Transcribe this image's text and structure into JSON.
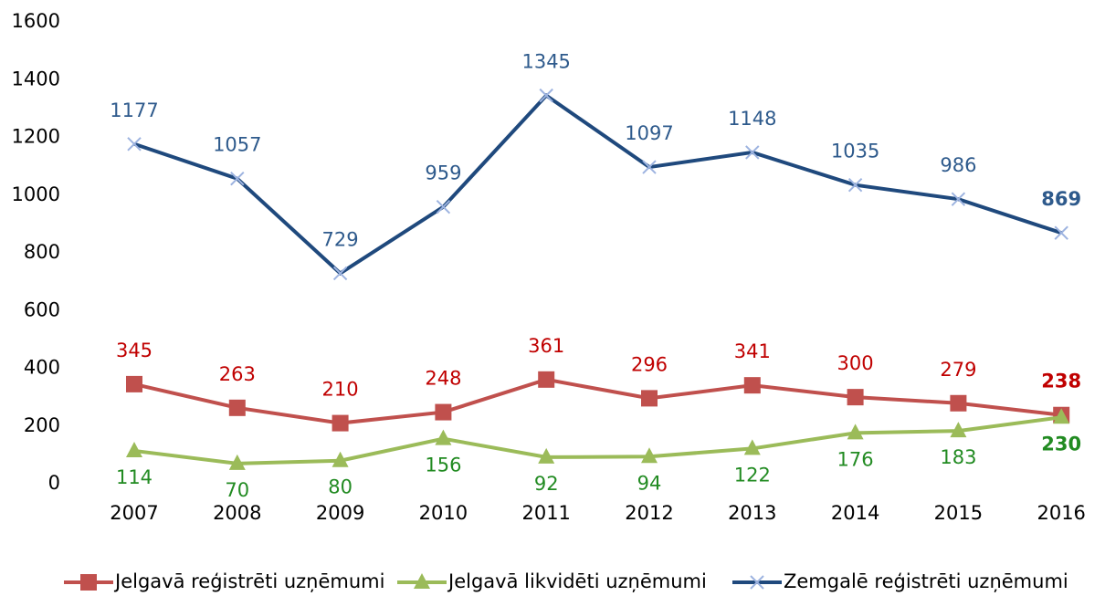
{
  "chart_data": {
    "type": "line",
    "categories": [
      "2007",
      "2008",
      "2009",
      "2010",
      "2011",
      "2012",
      "2013",
      "2014",
      "2015",
      "2016"
    ],
    "series": [
      {
        "name": "Jelgavā reģistrēti uzņēmumi",
        "color": "#c0504d",
        "label_color": "#c00000",
        "marker": "square",
        "label_position": "above",
        "values": [
          345,
          263,
          210,
          248,
          361,
          296,
          341,
          300,
          279,
          238
        ]
      },
      {
        "name": "Jelgavā likvidēti uzņēmumi",
        "color": "#9bbb59",
        "label_color": "#228b22",
        "marker": "triangle",
        "label_position": "below",
        "values": [
          114,
          70,
          80,
          156,
          92,
          94,
          122,
          176,
          183,
          230
        ]
      },
      {
        "name": "Zemgalē reģistrēti uzņēmumi",
        "color": "#1f497d",
        "label_color": "#2e5a8c",
        "marker": "x",
        "label_position": "above",
        "values": [
          1177,
          1057,
          729,
          959,
          1345,
          1097,
          1148,
          1035,
          986,
          869
        ]
      }
    ],
    "ylim": [
      0,
      1600
    ],
    "yticks": [
      0,
      200,
      400,
      600,
      800,
      1000,
      1200,
      1400,
      1600
    ],
    "grid": false,
    "legend": "bottom"
  }
}
